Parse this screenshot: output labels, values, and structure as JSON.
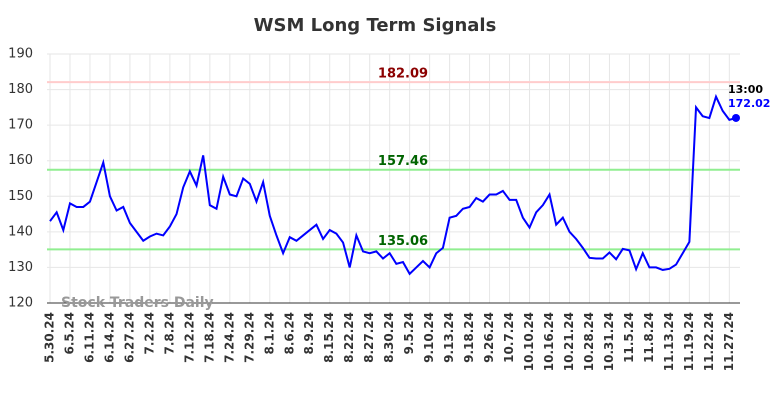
{
  "chart_data": {
    "type": "line",
    "title": "WSM Long Term Signals",
    "categories": [
      "5.30.24",
      null,
      null,
      "6.5.24",
      null,
      null,
      "6.11.24",
      null,
      null,
      "6.14.24",
      null,
      null,
      "6.27.24",
      null,
      null,
      "7.2.24",
      null,
      null,
      "7.8.24",
      null,
      null,
      "7.12.24",
      null,
      null,
      "7.18.24",
      null,
      null,
      "7.24.24",
      null,
      null,
      "7.29.24",
      null,
      null,
      "8.1.24",
      null,
      null,
      "8.6.24",
      null,
      null,
      "8.9.24",
      null,
      null,
      "8.15.24",
      null,
      null,
      "8.22.24",
      null,
      null,
      "8.27.24",
      null,
      null,
      "8.30.24",
      null,
      null,
      "9.5.24",
      null,
      null,
      "9.10.24",
      null,
      null,
      "9.13.24",
      null,
      null,
      "9.18.24",
      null,
      null,
      "9.26.24",
      null,
      null,
      "10.7.24",
      null,
      null,
      "10.10.24",
      null,
      null,
      "10.16.24",
      null,
      null,
      "10.21.24",
      null,
      null,
      "10.28.24",
      null,
      null,
      "10.31.24",
      null,
      null,
      "11.5.24",
      null,
      null,
      "11.8.24",
      null,
      null,
      "11.13.24",
      null,
      null,
      "11.19.24",
      null,
      null,
      "11.22.24",
      null,
      null,
      "11.27.24",
      null
    ],
    "values": [
      143,
      145.5,
      140.5,
      148,
      147,
      147,
      148.5,
      154,
      159.5,
      150,
      146,
      147,
      142.5,
      140,
      137.5,
      138.7,
      139.5,
      139,
      141.5,
      145,
      152.5,
      157,
      153,
      161.5,
      147.5,
      146.5,
      155.5,
      150.5,
      150,
      155,
      153.5,
      148.5,
      154,
      144.5,
      139,
      134,
      138.5,
      137.5,
      139,
      140.5,
      142,
      138,
      140.5,
      139.5,
      137,
      130,
      139,
      134.5,
      134,
      134.5,
      132.5,
      134,
      131,
      131.5,
      128.2,
      130,
      131.8,
      130,
      134,
      135.5,
      144,
      144.5,
      146.5,
      147,
      149.5,
      148.5,
      150.5,
      150.5,
      151.5,
      149,
      149,
      144,
      141.2,
      145.5,
      147.5,
      150.5,
      142,
      144,
      140,
      138,
      135.5,
      132.7,
      132.5,
      132.5,
      134.2,
      132.3,
      135.2,
      134.8,
      129.5,
      134,
      130,
      130,
      129.3,
      129.6,
      130.8,
      134,
      137.2,
      175,
      172.5,
      172,
      178,
      174,
      171.5,
      172.02
    ],
    "color": "#0000ff",
    "ylim": [
      120,
      190
    ],
    "yticks": [
      120,
      130,
      140,
      150,
      160,
      170,
      180,
      190
    ],
    "grid": true,
    "hlines": [
      {
        "value": 182.09,
        "color": "#ffcccc",
        "label_color": "#8b0000"
      },
      {
        "value": 157.46,
        "color": "#90ee90",
        "label_color": "#006400"
      },
      {
        "value": 135.06,
        "color": "#90ee90",
        "label_color": "#006400"
      }
    ],
    "last_time": "13:00",
    "watermark": "Stock Traders Daily"
  }
}
